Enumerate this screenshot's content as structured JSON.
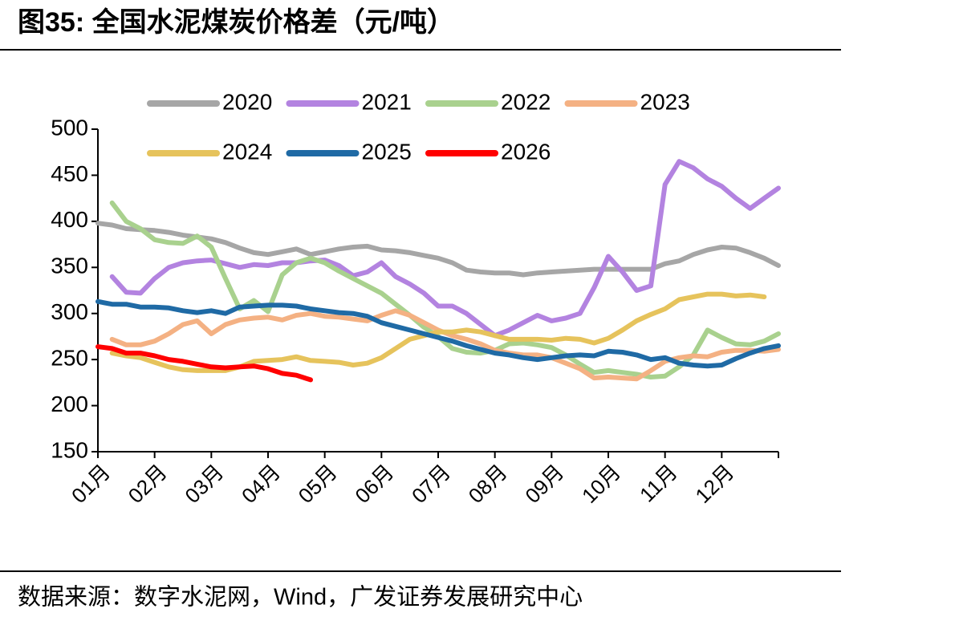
{
  "title": "图35:  全国水泥煤炭价格差（元/吨）",
  "source": "数据来源：数字水泥网，Wind，广发证券发展研究中心",
  "chart_data": {
    "type": "line",
    "categories": [
      "01月",
      null,
      null,
      null,
      "02月",
      null,
      null,
      null,
      "03月",
      null,
      null,
      null,
      "04月",
      null,
      null,
      null,
      "05月",
      null,
      null,
      null,
      "06月",
      null,
      null,
      null,
      "07月",
      null,
      null,
      null,
      "08月",
      null,
      null,
      null,
      "09月",
      null,
      null,
      null,
      "10月",
      null,
      null,
      null,
      "11月",
      null,
      null,
      null,
      "12月",
      null,
      null,
      null,
      null
    ],
    "ylim": [
      150,
      500
    ],
    "yticks": [
      150,
      200,
      250,
      300,
      350,
      400,
      450,
      500
    ],
    "legend": "top",
    "series": [
      {
        "name": "2020",
        "color": "#a6a6a6",
        "values": [
          398,
          396,
          392,
          391,
          390,
          388,
          385,
          383,
          381,
          377,
          371,
          366,
          364,
          367,
          370,
          364,
          367,
          370,
          372,
          373,
          369,
          368,
          366,
          363,
          360,
          355,
          347,
          345,
          344,
          344,
          342,
          344,
          345,
          346,
          347,
          348,
          348,
          348,
          348,
          348,
          354,
          357,
          364,
          369,
          372,
          371,
          366,
          360,
          352
        ]
      },
      {
        "name": "2021",
        "color": "#b383e0",
        "values": [
          null,
          340,
          323,
          322,
          338,
          350,
          355,
          357,
          358,
          354,
          350,
          353,
          352,
          355,
          355,
          357,
          358,
          352,
          341,
          345,
          355,
          340,
          332,
          322,
          308,
          308,
          300,
          288,
          276,
          282,
          290,
          298,
          292,
          295,
          300,
          328,
          362,
          345,
          325,
          330,
          440,
          465,
          458,
          446,
          438,
          425,
          414,
          425,
          436
        ]
      },
      {
        "name": "2022",
        "color": "#a9d18e",
        "values": [
          null,
          420,
          400,
          392,
          380,
          377,
          376,
          384,
          372,
          338,
          305,
          314,
          302,
          342,
          355,
          360,
          355,
          346,
          338,
          330,
          322,
          310,
          298,
          285,
          275,
          262,
          258,
          257,
          260,
          267,
          268,
          266,
          263,
          255,
          245,
          236,
          238,
          236,
          234,
          231,
          232,
          242,
          255,
          282,
          274,
          267,
          266,
          270,
          278
        ]
      },
      {
        "name": "2023",
        "color": "#f4b183",
        "values": [
          null,
          272,
          266,
          266,
          270,
          278,
          288,
          292,
          278,
          288,
          293,
          295,
          296,
          293,
          298,
          300,
          297,
          296,
          294,
          292,
          298,
          303,
          298,
          290,
          282,
          276,
          272,
          267,
          260,
          257,
          255,
          255,
          252,
          246,
          240,
          230,
          231,
          230,
          229,
          238,
          248,
          252,
          254,
          253,
          258,
          260,
          260,
          259,
          261
        ]
      },
      {
        "name": "2024",
        "color": "#e6c35c",
        "values": [
          null,
          257,
          254,
          252,
          247,
          242,
          239,
          238,
          238,
          238,
          242,
          248,
          249,
          250,
          253,
          249,
          248,
          247,
          244,
          246,
          252,
          262,
          272,
          276,
          280,
          280,
          282,
          280,
          276,
          272,
          272,
          272,
          271,
          273,
          272,
          268,
          273,
          282,
          292,
          299,
          305,
          315,
          318,
          321,
          321,
          319,
          320,
          318,
          null
        ]
      },
      {
        "name": "2025",
        "color": "#1f6aa5",
        "values": [
          313,
          310,
          310,
          307,
          307,
          306,
          303,
          301,
          303,
          300,
          307,
          308,
          309,
          309,
          308,
          305,
          303,
          301,
          300,
          297,
          290,
          286,
          282,
          278,
          274,
          270,
          265,
          261,
          257,
          255,
          252,
          250,
          252,
          254,
          255,
          254,
          259,
          258,
          255,
          250,
          252,
          246,
          244,
          243,
          244,
          251,
          257,
          262,
          265
        ]
      },
      {
        "name": "2026",
        "color": "#ff0000",
        "values": [
          264,
          262,
          257,
          257,
          254,
          250,
          248,
          245,
          242,
          241,
          242,
          243,
          240,
          235,
          233,
          228,
          null,
          null,
          null,
          null,
          null,
          null,
          null,
          null,
          null,
          null,
          null,
          null,
          null,
          null,
          null,
          null,
          null,
          null,
          null,
          null,
          null,
          null,
          null,
          null,
          null,
          null,
          null,
          null,
          null,
          null,
          null,
          null,
          null
        ]
      }
    ]
  }
}
